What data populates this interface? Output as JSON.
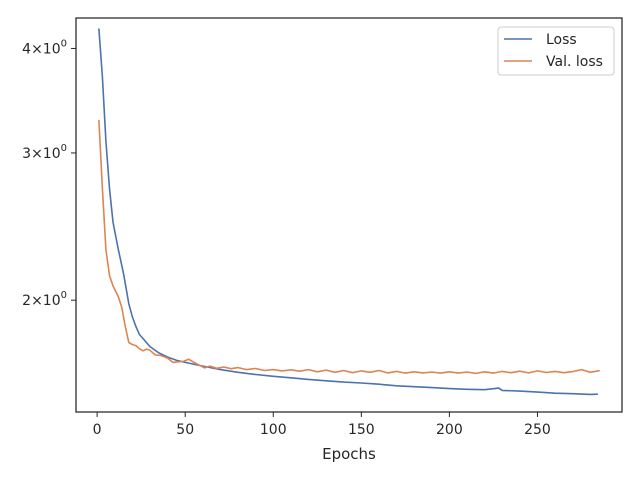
{
  "chart_data": {
    "type": "line",
    "title": "",
    "xlabel": "Epochs",
    "ylabel": "",
    "y_scale": "log",
    "xlim": [
      -12,
      298
    ],
    "ylim": [
      1.47,
      4.35
    ],
    "x_ticks": [
      0,
      50,
      100,
      150,
      200,
      250
    ],
    "x_tick_labels": [
      "0",
      "50",
      "100",
      "150",
      "200",
      "250"
    ],
    "y_ticks": [
      2,
      3,
      4
    ],
    "y_tick_labels": [
      {
        "base": "2",
        "op": "×",
        "ten": "10",
        "exp": "0"
      },
      {
        "base": "3",
        "op": "×",
        "ten": "10",
        "exp": "0"
      },
      {
        "base": "4",
        "op": "×",
        "ten": "10",
        "exp": "0"
      }
    ],
    "ylabel_fragment_marks": [
      "s",
      "s"
    ],
    "grid": false,
    "legend_position": "top-right",
    "series": [
      {
        "name": "Loss",
        "color": "#4c72b0",
        "points": [
          [
            1,
            4.22
          ],
          [
            3,
            3.7
          ],
          [
            5,
            3.1
          ],
          [
            7,
            2.72
          ],
          [
            9,
            2.48
          ],
          [
            12,
            2.3
          ],
          [
            15,
            2.15
          ],
          [
            18,
            1.98
          ],
          [
            20,
            1.91
          ],
          [
            22,
            1.86
          ],
          [
            24,
            1.82
          ],
          [
            27,
            1.79
          ],
          [
            30,
            1.76
          ],
          [
            35,
            1.73
          ],
          [
            40,
            1.71
          ],
          [
            45,
            1.695
          ],
          [
            50,
            1.685
          ],
          [
            60,
            1.668
          ],
          [
            70,
            1.652
          ],
          [
            80,
            1.64
          ],
          [
            90,
            1.63
          ],
          [
            100,
            1.622
          ],
          [
            110,
            1.615
          ],
          [
            120,
            1.608
          ],
          [
            130,
            1.602
          ],
          [
            140,
            1.596
          ],
          [
            150,
            1.592
          ],
          [
            160,
            1.587
          ],
          [
            170,
            1.58
          ],
          [
            180,
            1.576
          ],
          [
            190,
            1.572
          ],
          [
            200,
            1.568
          ],
          [
            210,
            1.565
          ],
          [
            220,
            1.563
          ],
          [
            228,
            1.57
          ],
          [
            230,
            1.56
          ],
          [
            240,
            1.557
          ],
          [
            250,
            1.553
          ],
          [
            260,
            1.548
          ],
          [
            270,
            1.546
          ],
          [
            280,
            1.543
          ],
          [
            284,
            1.544
          ]
        ]
      },
      {
        "name": "Val. loss",
        "color": "#dd8452",
        "points": [
          [
            1,
            3.28
          ],
          [
            3,
            2.72
          ],
          [
            5,
            2.3
          ],
          [
            7,
            2.14
          ],
          [
            9,
            2.08
          ],
          [
            12,
            2.02
          ],
          [
            14,
            1.96
          ],
          [
            16,
            1.86
          ],
          [
            18,
            1.78
          ],
          [
            20,
            1.77
          ],
          [
            22,
            1.765
          ],
          [
            24,
            1.75
          ],
          [
            26,
            1.74
          ],
          [
            28,
            1.748
          ],
          [
            30,
            1.742
          ],
          [
            33,
            1.72
          ],
          [
            36,
            1.718
          ],
          [
            40,
            1.705
          ],
          [
            43,
            1.685
          ],
          [
            46,
            1.688
          ],
          [
            49,
            1.69
          ],
          [
            52,
            1.7
          ],
          [
            55,
            1.685
          ],
          [
            58,
            1.672
          ],
          [
            61,
            1.66
          ],
          [
            64,
            1.668
          ],
          [
            68,
            1.658
          ],
          [
            72,
            1.664
          ],
          [
            76,
            1.656
          ],
          [
            80,
            1.661
          ],
          [
            85,
            1.652
          ],
          [
            90,
            1.657
          ],
          [
            95,
            1.648
          ],
          [
            100,
            1.652
          ],
          [
            105,
            1.646
          ],
          [
            110,
            1.651
          ],
          [
            115,
            1.645
          ],
          [
            120,
            1.652
          ],
          [
            125,
            1.642
          ],
          [
            130,
            1.65
          ],
          [
            135,
            1.64
          ],
          [
            140,
            1.648
          ],
          [
            145,
            1.638
          ],
          [
            150,
            1.646
          ],
          [
            155,
            1.64
          ],
          [
            160,
            1.648
          ],
          [
            165,
            1.637
          ],
          [
            170,
            1.644
          ],
          [
            175,
            1.636
          ],
          [
            180,
            1.642
          ],
          [
            185,
            1.637
          ],
          [
            190,
            1.641
          ],
          [
            195,
            1.636
          ],
          [
            200,
            1.642
          ],
          [
            205,
            1.636
          ],
          [
            210,
            1.641
          ],
          [
            215,
            1.635
          ],
          [
            220,
            1.642
          ],
          [
            225,
            1.636
          ],
          [
            230,
            1.644
          ],
          [
            235,
            1.638
          ],
          [
            240,
            1.645
          ],
          [
            245,
            1.637
          ],
          [
            250,
            1.646
          ],
          [
            255,
            1.639
          ],
          [
            260,
            1.644
          ],
          [
            265,
            1.638
          ],
          [
            270,
            1.643
          ],
          [
            275,
            1.652
          ],
          [
            280,
            1.64
          ],
          [
            285,
            1.647
          ]
        ]
      }
    ]
  }
}
